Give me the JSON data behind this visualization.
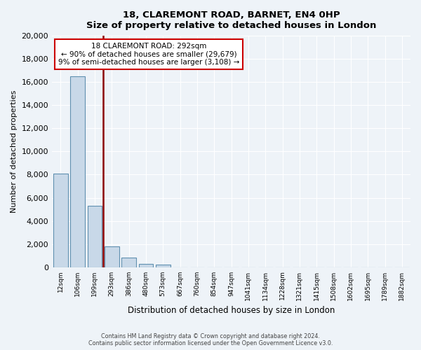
{
  "title": "18, CLAREMONT ROAD, BARNET, EN4 0HP",
  "subtitle": "Size of property relative to detached houses in London",
  "xlabel": "Distribution of detached houses by size in London",
  "ylabel": "Number of detached properties",
  "bin_labels": [
    "12sqm",
    "106sqm",
    "199sqm",
    "293sqm",
    "386sqm",
    "480sqm",
    "573sqm",
    "667sqm",
    "760sqm",
    "854sqm",
    "947sqm",
    "1041sqm",
    "1134sqm",
    "1228sqm",
    "1321sqm",
    "1415sqm",
    "1508sqm",
    "1602sqm",
    "1695sqm",
    "1789sqm",
    "1882sqm"
  ],
  "bar_heights": [
    8100,
    16500,
    5300,
    1800,
    800,
    300,
    250,
    0,
    0,
    0,
    0,
    0,
    0,
    0,
    0,
    0,
    0,
    0,
    0,
    0,
    0
  ],
  "bar_color": "#c8d8e8",
  "bar_edge_color": "#6090b0",
  "vline_color": "#8b0000",
  "annotation_title": "18 CLAREMONT ROAD: 292sqm",
  "annotation_line1": "← 90% of detached houses are smaller (29,679)",
  "annotation_line2": "9% of semi-detached houses are larger (3,108) →",
  "annotation_box_color": "#ffffff",
  "annotation_box_edge": "#cc0000",
  "ylim": [
    0,
    20000
  ],
  "yticks": [
    0,
    2000,
    4000,
    6000,
    8000,
    10000,
    12000,
    14000,
    16000,
    18000,
    20000
  ],
  "footer1": "Contains HM Land Registry data © Crown copyright and database right 2024.",
  "footer2": "Contains public sector information licensed under the Open Government Licence v3.0.",
  "bg_color": "#eef3f8",
  "plot_bg_color": "#eef3f8",
  "grid_color": "#ffffff"
}
